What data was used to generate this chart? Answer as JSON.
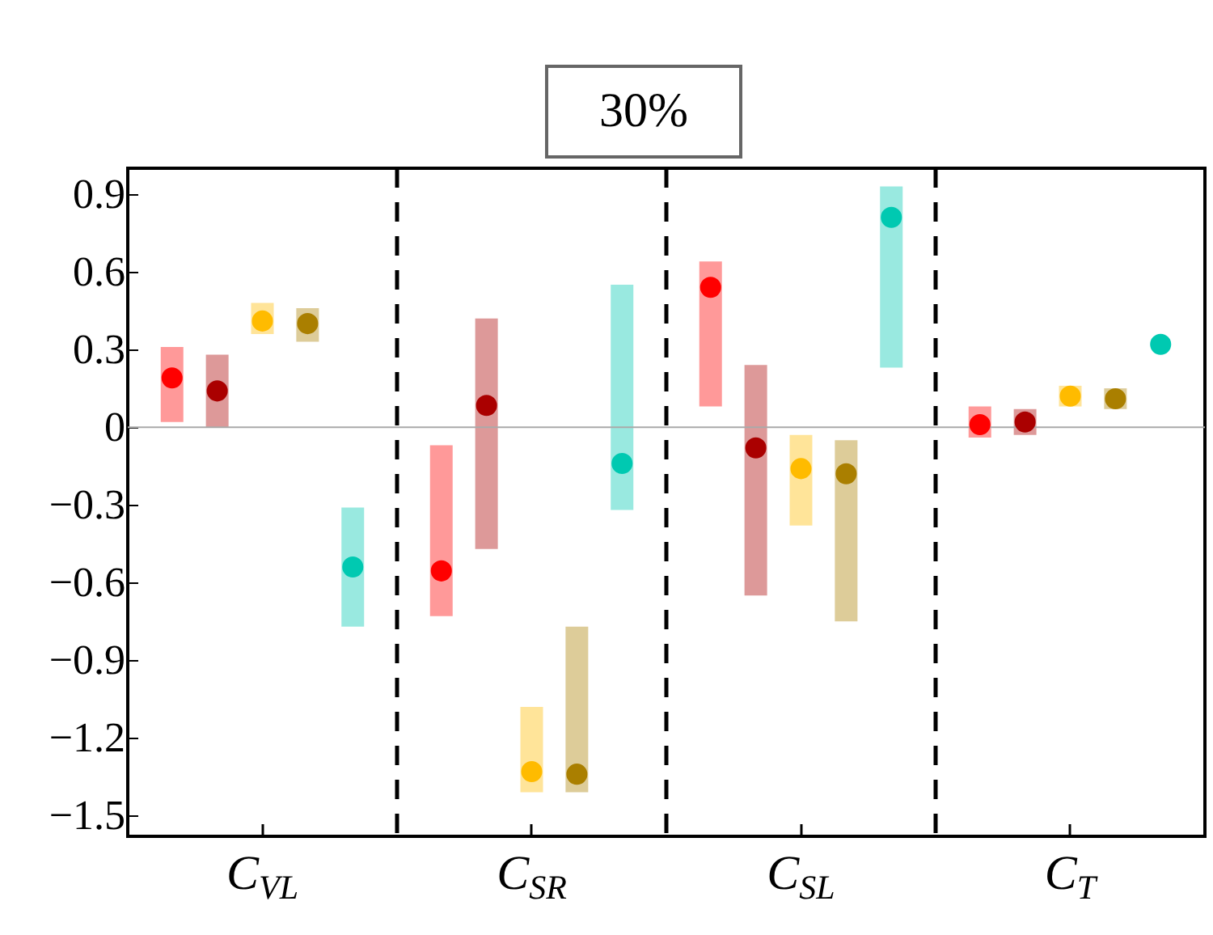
{
  "chart_data": {
    "type": "scatter",
    "title": "30%",
    "categories": [
      "C$_{V}$$_{L}$",
      "C$_{S}$$_{R}$",
      "C$_{S}$$_{L}$",
      "C$_{T}$"
    ],
    "series": [
      {
        "color": "#ff0000",
        "values": [
          0.19,
          -0.555,
          0.54,
          0.01
        ],
        "errors": [
          [
            0.02,
            0.31
          ],
          [
            -0.73,
            -0.07
          ],
          [
            0.08,
            0.64
          ],
          [
            -0.04,
            0.08
          ]
        ]
      },
      {
        "color": "#aa0000",
        "values": [
          0.14,
          0.084,
          -0.08,
          0.02
        ],
        "errors": [
          [
            0,
            0.28
          ],
          [
            -0.47,
            0.42
          ],
          [
            -0.65,
            0.24
          ],
          [
            -0.03,
            0.07
          ]
        ]
      },
      {
        "color": "#ffbb00",
        "values": [
          0.41,
          -1.33,
          -0.16,
          0.12
        ],
        "errors": [
          [
            0.36,
            0.48
          ],
          [
            -1.41,
            -1.08
          ],
          [
            -0.38,
            -0.03
          ],
          [
            0.08,
            0.16
          ]
        ]
      },
      {
        "color": "#aa7f00",
        "values": [
          0.4,
          -1.34,
          -0.18,
          0.11
        ],
        "errors": [
          [
            0.33,
            0.46
          ],
          [
            -1.41,
            -0.77
          ],
          [
            -0.75,
            -0.05
          ],
          [
            0.07,
            0.15
          ]
        ]
      },
      {
        "color": "#00c9b1",
        "values": [
          -0.54,
          -0.14,
          0.81,
          0.32
        ],
        "errors": [
          [
            -0.77,
            -0.31
          ],
          [
            -0.32,
            0.55
          ],
          [
            0.23,
            0.93
          ],
          null
        ]
      }
    ],
    "ylim": [
      -1.58,
      1.0
    ],
    "yticks": [
      0.9,
      0.6,
      0.3,
      0,
      -0.3,
      -0.6,
      -0.9,
      -1.2,
      -1.5
    ],
    "ref_lines": [
      {
        "axis": "y",
        "value": 0,
        "color": "#aaaaaa"
      }
    ],
    "grid": "x",
    "marker": "circle"
  }
}
